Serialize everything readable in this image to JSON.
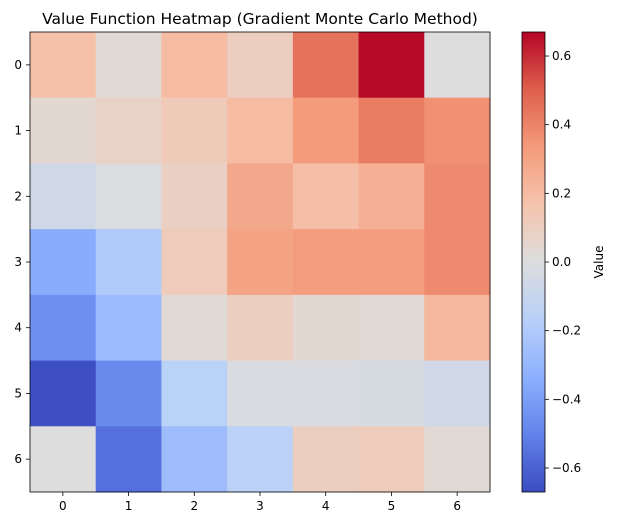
{
  "chart_data": {
    "type": "heatmap",
    "title": "Value Function Heatmap (Gradient Monte Carlo Method)",
    "xlabel": "",
    "ylabel": "",
    "x_ticks": [
      "0",
      "1",
      "2",
      "3",
      "4",
      "5",
      "6"
    ],
    "y_ticks": [
      "0",
      "1",
      "2",
      "3",
      "4",
      "5",
      "6"
    ],
    "values": [
      [
        0.18,
        0.03,
        0.2,
        0.1,
        0.45,
        0.66,
        0.0
      ],
      [
        0.04,
        0.08,
        0.13,
        0.2,
        0.33,
        0.42,
        0.36
      ],
      [
        -0.06,
        -0.01,
        0.09,
        0.28,
        0.19,
        0.25,
        0.38
      ],
      [
        -0.35,
        -0.2,
        0.12,
        0.3,
        0.32,
        0.32,
        0.38
      ],
      [
        -0.45,
        -0.28,
        0.03,
        0.1,
        0.04,
        0.03,
        0.22
      ],
      [
        -0.66,
        -0.47,
        -0.16,
        -0.02,
        -0.02,
        -0.03,
        -0.06
      ],
      [
        0.0,
        -0.56,
        -0.27,
        -0.15,
        0.1,
        0.12,
        0.03
      ]
    ],
    "colormap": "coolwarm",
    "colorbar": {
      "label": "Value",
      "range": [
        -0.67,
        0.67
      ],
      "ticks": [
        -0.6,
        -0.4,
        -0.2,
        0.0,
        0.2,
        0.4,
        0.6
      ],
      "tick_labels": [
        "−0.6",
        "−0.4",
        "−0.2",
        "0.0",
        "0.2",
        "0.4",
        "0.6"
      ]
    },
    "grid": false
  }
}
